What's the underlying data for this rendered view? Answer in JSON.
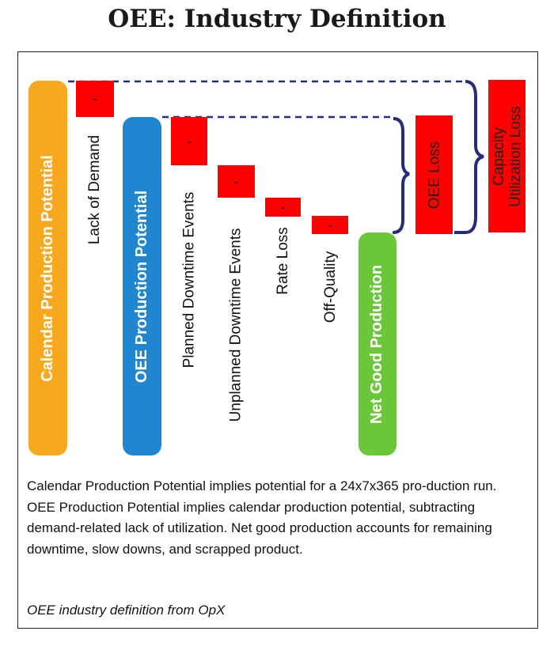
{
  "title": "OEE: Industry Definition",
  "bars": {
    "calendar": "Calendar Production Potential",
    "oee": "OEE Production Potential",
    "net_good": "Net Good Production"
  },
  "losses": {
    "lack_of_demand": "Lack of Demand",
    "planned": "Planned Downtime Events",
    "unplanned": "Unplanned Downtime Events",
    "rate": "Rate Loss",
    "quality": "Off-Quality",
    "marker": "-"
  },
  "brackets": {
    "oee_loss": "OEE Loss",
    "capacity_line1": "Capacity",
    "capacity_line2": "Utilization Loss"
  },
  "caption": "Calendar Production Potential implies potential for a 24x7x365 pro-duction run. OEE Production Potential implies calendar production potential, subtracting demand-related lack of utilization. Net good production accounts for remaining downtime, slow downs, and scrapped product.",
  "source": "OEE industry definition from OpX",
  "colors": {
    "calendar": "#f7a81f",
    "oee": "#1f86cf",
    "net_good": "#6cc63a",
    "loss": "#ff0000",
    "bracket": "#262b7a"
  }
}
